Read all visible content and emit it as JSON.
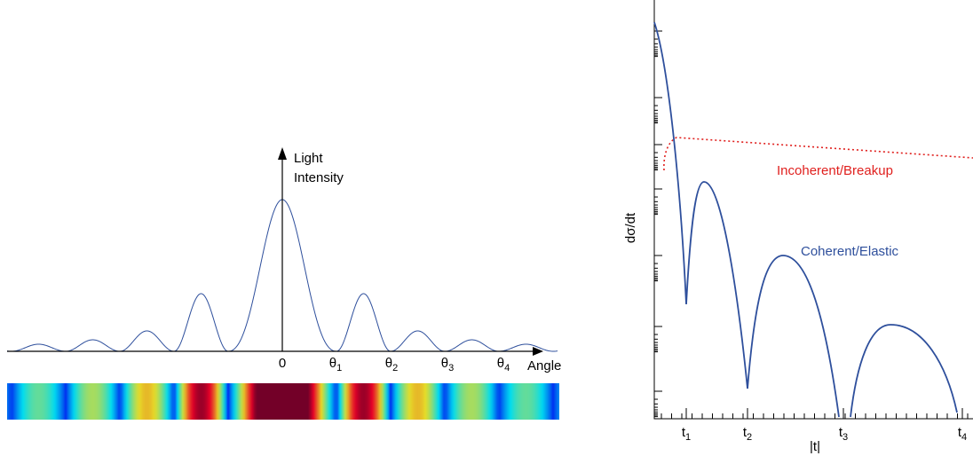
{
  "left_plot": {
    "y_label_line1": "Light",
    "y_label_line2": "Intensity",
    "origin_label": "0",
    "x_ticks": [
      {
        "base": "θ",
        "sub": "1"
      },
      {
        "base": "θ",
        "sub": "2"
      },
      {
        "base": "θ",
        "sub": "3"
      },
      {
        "base": "θ",
        "sub": "4"
      }
    ],
    "x_label": "Angle"
  },
  "right_plot": {
    "y_label": "dσ/dt",
    "incoherent_label": "Incoherent/Breakup",
    "coherent_label": "Coherent/Elastic",
    "x_ticks": [
      {
        "base": "t",
        "sub": "1"
      },
      {
        "base": "t",
        "sub": "2"
      },
      {
        "base": "t",
        "sub": "3"
      },
      {
        "base": "t",
        "sub": "4"
      }
    ],
    "x_label": "|t|"
  }
}
